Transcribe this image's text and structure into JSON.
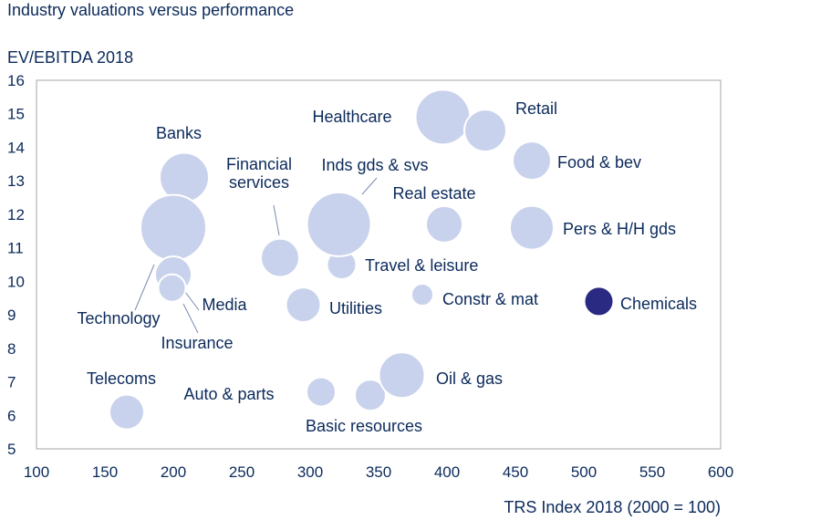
{
  "chart_data": {
    "type": "scatter",
    "title": "Industry valuations versus performance",
    "ylabel": "EV/EBITDA 2018",
    "xlabel": "TRS Index 2018 (2000 = 100)",
    "xlim": [
      100,
      600
    ],
    "ylim": [
      5,
      16
    ],
    "xticks": [
      100,
      150,
      200,
      250,
      300,
      350,
      400,
      450,
      500,
      550,
      600
    ],
    "yticks": [
      5,
      6,
      7,
      8,
      9,
      10,
      11,
      12,
      13,
      14,
      15,
      16
    ],
    "grid": false,
    "colors": {
      "bubble": "#c9d2ec",
      "highlight": "#2a2a82",
      "text": "#0b2a5b",
      "axis": "#b0b0b0"
    },
    "points": [
      {
        "label": "Banks",
        "x": 208,
        "y": 13.1,
        "size": 27
      },
      {
        "label": "Technology",
        "x": 200,
        "y": 11.6,
        "size": 36
      },
      {
        "label": "Media",
        "x": 200,
        "y": 10.2,
        "size": 20
      },
      {
        "label": "Insurance",
        "x": 199,
        "y": 9.8,
        "size": 15
      },
      {
        "label": "Financial services",
        "x": 278,
        "y": 10.7,
        "size": 21
      },
      {
        "label": "Telecoms",
        "x": 166,
        "y": 6.1,
        "size": 19
      },
      {
        "label": "Auto & parts",
        "x": 308,
        "y": 6.7,
        "size": 16
      },
      {
        "label": "Basic resources",
        "x": 344,
        "y": 6.6,
        "size": 17
      },
      {
        "label": "Oil & gas",
        "x": 367,
        "y": 7.2,
        "size": 25
      },
      {
        "label": "Utilities",
        "x": 295,
        "y": 9.3,
        "size": 19
      },
      {
        "label": "Travel & leisure",
        "x": 323,
        "y": 10.5,
        "size": 16
      },
      {
        "label": "Inds gds & svs",
        "x": 321,
        "y": 11.7,
        "size": 35
      },
      {
        "label": "Healthcare",
        "x": 397,
        "y": 14.9,
        "size": 30
      },
      {
        "label": "Retail",
        "x": 428,
        "y": 14.5,
        "size": 23
      },
      {
        "label": "Real estate",
        "x": 398,
        "y": 11.7,
        "size": 20
      },
      {
        "label": "Constr & mat",
        "x": 382,
        "y": 9.6,
        "size": 12
      },
      {
        "label": "Food & bev",
        "x": 462,
        "y": 13.6,
        "size": 21
      },
      {
        "label": "Pers & H/H gds",
        "x": 462,
        "y": 11.6,
        "size": 24
      },
      {
        "label": "Chemicals",
        "x": 511,
        "y": 9.4,
        "size": 16,
        "highlight": true
      }
    ]
  }
}
